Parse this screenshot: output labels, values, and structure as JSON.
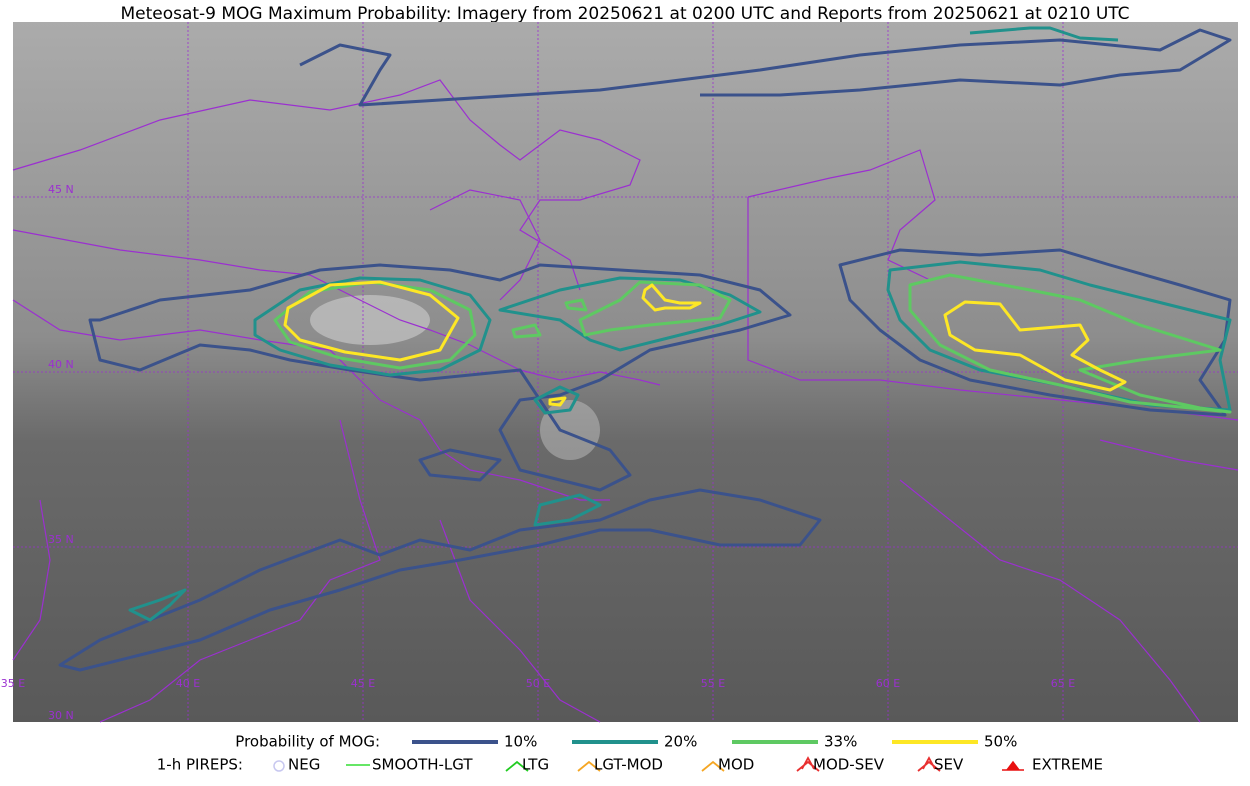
{
  "title": "Meteosat-9 MOG Maximum Probability: Imagery from 20250621 at 0200 UTC and Reports from 20250621 at 0210 UTC",
  "map": {
    "lat_labels": [
      "45 N",
      "40 N",
      "35 N",
      "30 N"
    ],
    "lon_labels": [
      "35 E",
      "40 E",
      "45 E",
      "50 E",
      "55 E",
      "60 E",
      "65 E"
    ]
  },
  "legend": {
    "probability": {
      "label": "Probability of MOG:",
      "items": [
        {
          "label": "10%",
          "color": "#3b528b"
        },
        {
          "label": "20%",
          "color": "#21918c"
        },
        {
          "label": "33%",
          "color": "#5ec962"
        },
        {
          "label": "50%",
          "color": "#fde725"
        }
      ]
    },
    "pireps": {
      "label": "1-h PIREPS:",
      "items": [
        {
          "label": "NEG",
          "color": "#c8c8f0"
        },
        {
          "label": "SMOOTH-LGT",
          "color": "#33dd33"
        },
        {
          "label": "LTG",
          "color": "#22cc22"
        },
        {
          "label": "LGT-MOD",
          "color": "#f5a623"
        },
        {
          "label": "MOD",
          "color": "#f5a623"
        },
        {
          "label": "MOD-SEV",
          "color": "#e83030"
        },
        {
          "label": "SEV",
          "color": "#e83030"
        },
        {
          "label": "EXTREME",
          "color": "#e81010"
        }
      ]
    }
  }
}
